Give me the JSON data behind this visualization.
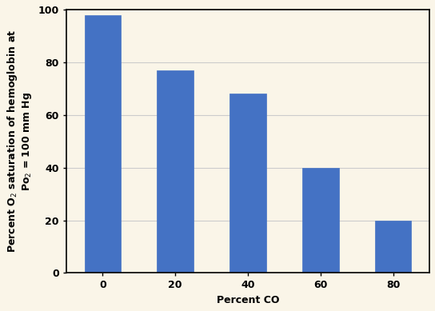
{
  "categories": [
    0,
    20,
    40,
    60,
    80
  ],
  "values": [
    98,
    77,
    68,
    40,
    20
  ],
  "bar_color": "#4472C4",
  "background_color": "#FAF5E8",
  "plot_area_color": "#FAF5E8",
  "xlabel": "Percent CO",
  "ylabel": "Percent O$_2$ saturation of hemoglobin at\nPo$_2$ = 100 mm Hg",
  "xlim": [
    -0.5,
    4.5
  ],
  "ylim": [
    0,
    100
  ],
  "yticks": [
    0,
    20,
    40,
    60,
    80,
    100
  ],
  "label_fontsize": 9,
  "tick_fontsize": 9,
  "bar_width": 0.5,
  "grid_color": "#CCCCCC",
  "spine_color": "#000000"
}
